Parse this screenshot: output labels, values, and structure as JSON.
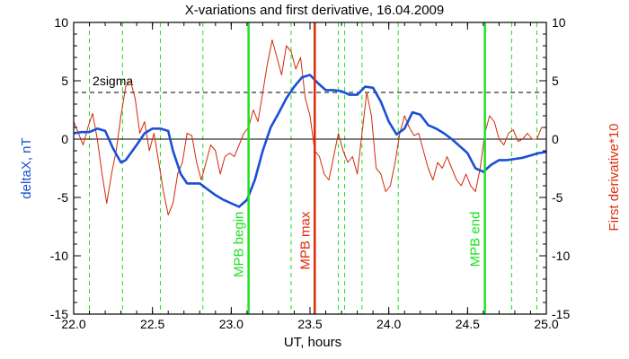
{
  "chart_data": {
    "type": "line",
    "title": "X-variations and first derivative, 16.04.2009",
    "xlabel": "UT, hours",
    "ylabel_left": "deltaX, nT",
    "ylabel_right": "First derivative*10",
    "xlim": [
      22.0,
      25.0
    ],
    "ylim": [
      -15,
      10
    ],
    "x_ticks": [
      22.0,
      22.5,
      23.0,
      23.5,
      24.0,
      24.5,
      25.0
    ],
    "x_tick_labels": [
      "22.0",
      "22.5",
      "23.0",
      "23.5",
      "24.0",
      "24.5",
      "25.0"
    ],
    "y_ticks": [
      -15,
      -10,
      -5,
      0,
      5,
      10
    ],
    "y_tick_labels": [
      "-15",
      "-10",
      "-5",
      "0",
      "5",
      "10"
    ],
    "zero_line": 0,
    "threshold": {
      "value": 4,
      "label": "2sigma",
      "label_x": 22.12
    },
    "series": [
      {
        "color": "#1a4fd6",
        "x": [
          22.0,
          22.05,
          22.1,
          22.15,
          22.2,
          22.25,
          22.3,
          22.33,
          22.4,
          22.45,
          22.5,
          22.55,
          22.6,
          22.63,
          22.68,
          22.72,
          22.8,
          22.85,
          22.9,
          22.95,
          23.0,
          23.05,
          23.1,
          23.15,
          23.2,
          23.25,
          23.3,
          23.35,
          23.4,
          23.45,
          23.5,
          23.55,
          23.6,
          23.65,
          23.7,
          23.75,
          23.8,
          23.85,
          23.9,
          23.95,
          24.0,
          24.05,
          24.1,
          24.15,
          24.2,
          24.25,
          24.3,
          24.35,
          24.4,
          24.45,
          24.5,
          24.55,
          24.6,
          24.65,
          24.7,
          24.75,
          24.8,
          24.85,
          24.9,
          24.95,
          25.0
        ],
        "values": [
          0.5,
          0.6,
          0.6,
          0.9,
          0.7,
          -0.8,
          -2.0,
          -1.8,
          -0.5,
          0.5,
          0.9,
          0.9,
          0.7,
          -1.0,
          -3.0,
          -3.8,
          -3.8,
          -4.3,
          -4.8,
          -5.2,
          -5.5,
          -5.8,
          -5.2,
          -3.5,
          -1.0,
          1.0,
          2.2,
          3.5,
          4.5,
          5.3,
          5.5,
          4.8,
          4.2,
          4.2,
          4.1,
          3.8,
          3.8,
          4.5,
          4.4,
          3.2,
          1.5,
          0.4,
          0.9,
          2.3,
          2.1,
          1.2,
          0.9,
          0.5,
          0.0,
          -0.6,
          -1.2,
          -2.5,
          -2.8,
          -2.2,
          -1.8,
          -1.8,
          -1.7,
          -1.6,
          -1.4,
          -1.2,
          -1.1
        ]
      },
      {
        "color": "#d22a0a",
        "x": [
          22.0,
          22.03,
          22.06,
          22.09,
          22.12,
          22.15,
          22.18,
          22.21,
          22.24,
          22.27,
          22.3,
          22.33,
          22.36,
          22.39,
          22.42,
          22.45,
          22.48,
          22.51,
          22.54,
          22.57,
          22.6,
          22.63,
          22.66,
          22.69,
          22.72,
          22.75,
          22.78,
          22.81,
          22.84,
          22.87,
          22.9,
          22.93,
          22.96,
          22.99,
          23.02,
          23.05,
          23.08,
          23.11,
          23.14,
          23.17,
          23.2,
          23.23,
          23.26,
          23.29,
          23.32,
          23.35,
          23.38,
          23.41,
          23.44,
          23.47,
          23.5,
          23.53,
          23.56,
          23.59,
          23.62,
          23.65,
          23.68,
          23.71,
          23.74,
          23.77,
          23.8,
          23.83,
          23.86,
          23.89,
          23.92,
          23.95,
          23.98,
          24.01,
          24.04,
          24.07,
          24.1,
          24.13,
          24.16,
          24.19,
          24.22,
          24.25,
          24.28,
          24.31,
          24.34,
          24.37,
          24.4,
          24.43,
          24.46,
          24.49,
          24.52,
          24.55,
          24.58,
          24.61,
          24.64,
          24.67,
          24.7,
          24.73,
          24.76,
          24.79,
          24.82,
          24.85,
          24.88,
          24.91,
          24.94,
          24.97,
          25.0
        ],
        "values": [
          1.5,
          0.5,
          -0.5,
          1.0,
          2.2,
          0.0,
          -3.0,
          -5.5,
          -3.0,
          -1.0,
          2.0,
          4.5,
          5.0,
          3.5,
          0.5,
          1.5,
          -1.0,
          0.5,
          -2.0,
          -4.5,
          -6.5,
          -5.5,
          -3.0,
          -2.0,
          0.5,
          0.3,
          -2.0,
          -3.5,
          -2.0,
          -0.5,
          -1.0,
          -3.0,
          -1.5,
          -1.2,
          -1.5,
          -0.5,
          0.5,
          1.0,
          2.5,
          1.5,
          4.0,
          6.5,
          8.5,
          7.0,
          5.5,
          8.0,
          7.5,
          6.0,
          7.0,
          3.5,
          2.0,
          -1.0,
          -1.5,
          -3.0,
          -3.5,
          -1.5,
          0.5,
          -1.0,
          -2.0,
          -1.5,
          -3.0,
          0.5,
          4.0,
          2.0,
          -2.5,
          -3.0,
          -4.5,
          -4.0,
          -2.0,
          0.5,
          2.0,
          1.0,
          0.3,
          0.5,
          -1.0,
          -2.5,
          -3.5,
          -2.0,
          -2.5,
          -1.5,
          -2.5,
          -3.5,
          -4.0,
          -3.0,
          -4.0,
          -4.5,
          -2.5,
          0.5,
          2.0,
          1.5,
          0.0,
          -0.5,
          0.5,
          0.8,
          -0.2,
          0.0,
          0.5,
          0.0,
          0.0,
          1.0,
          1.0
        ]
      }
    ],
    "dashed_markers": [
      22.1,
      22.31,
      22.55,
      22.82,
      23.38,
      23.68,
      23.72,
      23.83,
      24.06,
      24.78,
      24.94
    ],
    "events": [
      {
        "x": 23.11,
        "label": "MPB begin",
        "color": "#22e022",
        "label_y": -6.2
      },
      {
        "x": 23.53,
        "label": "MPB max",
        "color": "#e02a0a",
        "label_y": -6.2
      },
      {
        "x": 24.61,
        "label": "MPB end",
        "color": "#22e022",
        "label_y": -6.2
      }
    ],
    "grid": false,
    "colors": {
      "axes": "#000000",
      "threshold": "#000000",
      "dashed_markers": "#22dd22",
      "left_label": "#1a4fd6",
      "right_label": "#e03010"
    }
  }
}
